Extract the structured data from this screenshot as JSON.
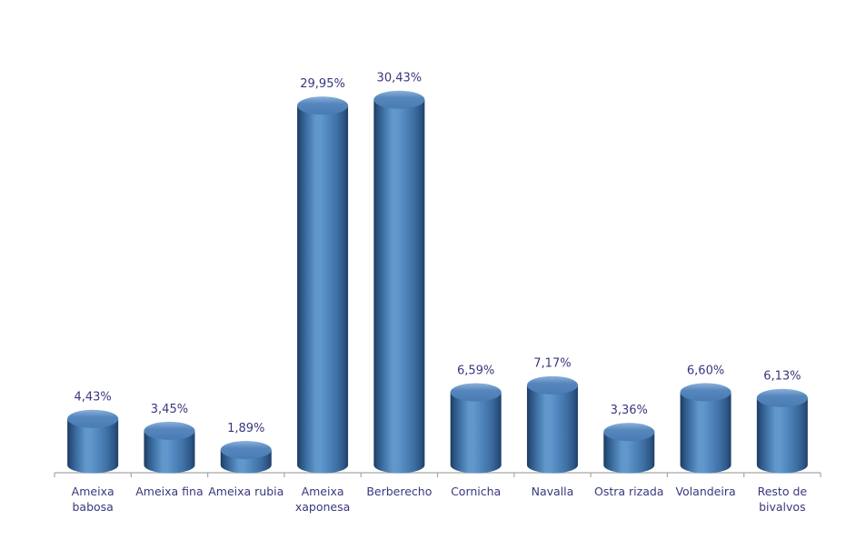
{
  "chart_data": {
    "type": "bar",
    "subtype": "3d-cylinder",
    "categories": [
      "Ameixa babosa",
      "Ameixa fina",
      "Ameixa rubia",
      "Ameixa xaponesa",
      "Berberecho",
      "Cornicha",
      "Navalla",
      "Ostra rizada",
      "Volandeira",
      "Resto de bivalvos"
    ],
    "category_lines": [
      [
        "Ameixa",
        "babosa"
      ],
      [
        "Ameixa fina"
      ],
      [
        "Ameixa rubia"
      ],
      [
        "Ameixa",
        "xaponesa"
      ],
      [
        "Berberecho"
      ],
      [
        "Cornicha"
      ],
      [
        "Navalla"
      ],
      [
        "Ostra rizada"
      ],
      [
        "Volandeira"
      ],
      [
        "Resto de",
        "bivalvos"
      ]
    ],
    "values": [
      4.43,
      3.45,
      1.89,
      29.95,
      30.43,
      6.59,
      7.17,
      3.36,
      6.6,
      6.13
    ],
    "value_labels": [
      "4,43%",
      "3,45%",
      "1,89%",
      "29,95%",
      "30,43%",
      "6,59%",
      "7,17%",
      "3,36%",
      "6,60%",
      "6,13%"
    ],
    "ylim": [
      0,
      32
    ],
    "grid": false,
    "legend": "none",
    "background": "#ffffff",
    "colors": {
      "label_text": "#39377f",
      "axis_line": "#a6a6a6",
      "cylinder_edge_dark": "#1c3b60",
      "cylinder_mid": "#5087be",
      "cylinder_highlight": "#6197cb",
      "cylinder_top_rim": "#8cb2dc",
      "cylinder_top_face": "#4a7cb4"
    }
  }
}
